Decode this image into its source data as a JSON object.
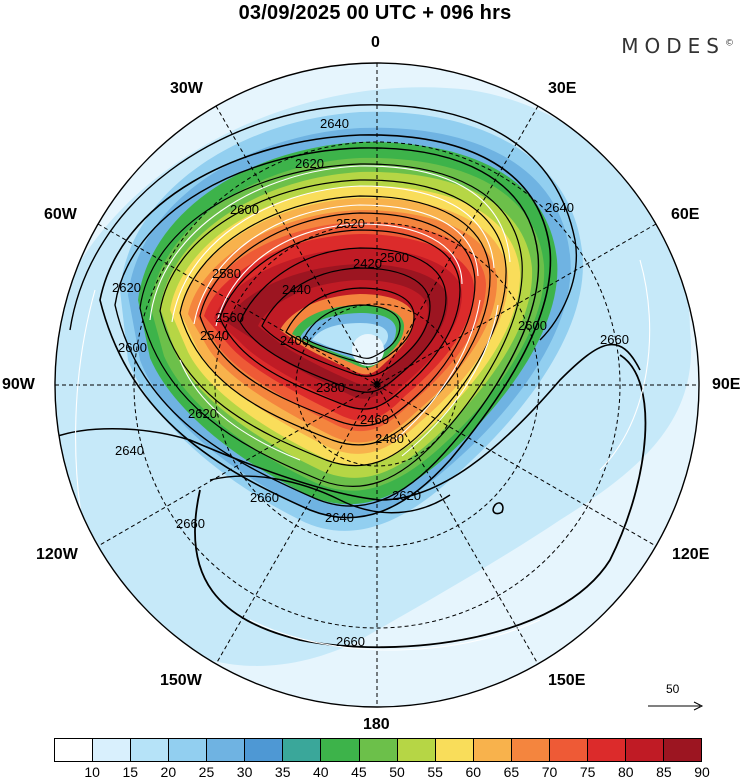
{
  "title": "03/09/2025  00 UTC  + 096 hrs",
  "brand": "MODES",
  "brand_mark": "©",
  "lon_labels": [
    "0",
    "30E",
    "60E",
    "90E",
    "120E",
    "150E",
    "180",
    "150W",
    "120W",
    "90W",
    "60W",
    "30W"
  ],
  "contour_labels": [
    "2640",
    "2620",
    "2600",
    "2580",
    "2560",
    "2540",
    "2520",
    "2500",
    "2480",
    "2460",
    "2440",
    "2420",
    "2400",
    "2380",
    "2660"
  ],
  "wind_scale": {
    "value": "50"
  },
  "colorbar": {
    "levels": [
      "10",
      "15",
      "20",
      "25",
      "30",
      "35",
      "40",
      "45",
      "50",
      "55",
      "60",
      "65",
      "70",
      "75",
      "80",
      "85",
      "90"
    ],
    "colors": [
      "#ffffff",
      "#d9f0fd",
      "#b6e3f8",
      "#92cff0",
      "#6fb3e2",
      "#4e98d4",
      "#3aa79a",
      "#3db34a",
      "#6cc04a",
      "#b6d645",
      "#f9dd5a",
      "#f8b24c",
      "#f4853e",
      "#ee5a36",
      "#dc2b2b",
      "#c01b25",
      "#9c1521"
    ]
  }
}
